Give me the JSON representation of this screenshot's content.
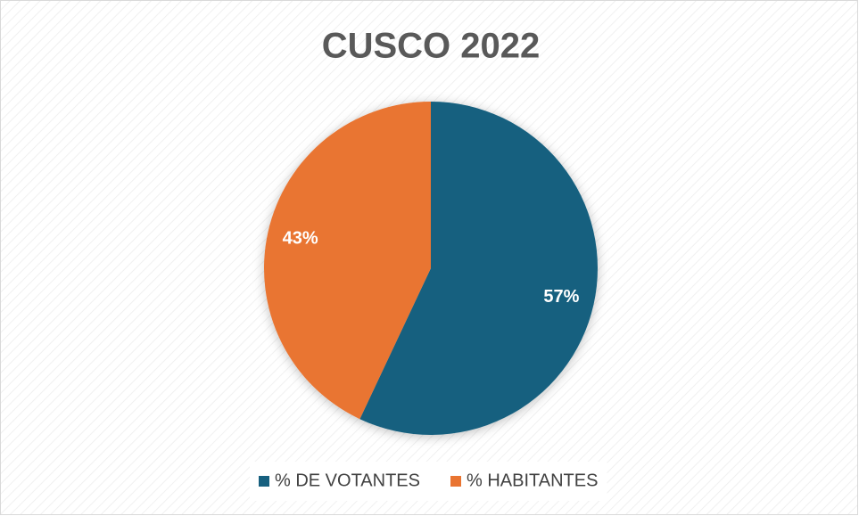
{
  "chart_data": {
    "type": "pie",
    "title": "CUSCO 2022",
    "categories": [
      "% DE VOTANTES",
      "% HABITANTES"
    ],
    "values": [
      57,
      43
    ],
    "value_labels": [
      "57%",
      "43%"
    ],
    "colors": [
      "#17607f",
      "#e97431"
    ],
    "legend": "bottom"
  }
}
